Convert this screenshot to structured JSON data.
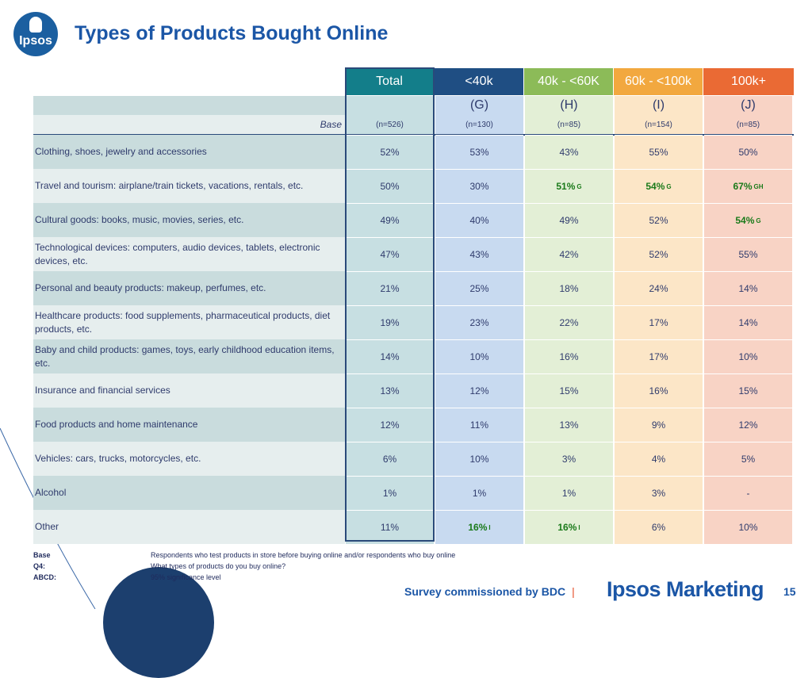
{
  "logo": {
    "text": "Ipsos"
  },
  "title": "Types of Products Bought Online",
  "columns": [
    {
      "label": "Total",
      "letter": "",
      "base": "(n=526)",
      "header_bg": "#137e8a",
      "header_color": "#ffffff",
      "cell_bg": "#c7dfe2"
    },
    {
      "label": "<40k",
      "letter": "(G)",
      "base": "(n=130)",
      "header_bg": "#1f4e83",
      "header_color": "#ffffff",
      "cell_bg": "#c8daf0"
    },
    {
      "label": "40k - <60K",
      "letter": "(H)",
      "base": "(n=85)",
      "header_bg": "#8cbb58",
      "header_color": "#ffffff",
      "cell_bg": "#e3efd6"
    },
    {
      "label": "60k - <100k",
      "letter": "(I)",
      "base": "(n=154)",
      "header_bg": "#f2a83f",
      "header_color": "#ffffff",
      "cell_bg": "#fce6c7"
    },
    {
      "label": "100k+",
      "letter": "(J)",
      "base": "(n=85)",
      "header_bg": "#ea6a34",
      "header_color": "#ffffff",
      "cell_bg": "#f8d3c5"
    }
  ],
  "base_label": "Base",
  "rows": [
    {
      "label": "Clothing, shoes, jewelry and accessories",
      "values": [
        "52%",
        "53%",
        "43%",
        "55%",
        "50%"
      ],
      "sig": [
        "",
        "",
        "",
        "",
        ""
      ]
    },
    {
      "label": "Travel and tourism: airplane/train tickets, vacations, rentals, etc.",
      "values": [
        "50%",
        "30%",
        "51%",
        "54%",
        "67%"
      ],
      "sig": [
        "",
        "",
        "G",
        "G",
        "GH"
      ]
    },
    {
      "label": "Cultural goods: books, music, movies, series, etc.",
      "values": [
        "49%",
        "40%",
        "49%",
        "52%",
        "54%"
      ],
      "sig": [
        "",
        "",
        "",
        "",
        "G"
      ]
    },
    {
      "label": "Technological devices: computers, audio devices, tablets, electronic devices, etc.",
      "values": [
        "47%",
        "43%",
        "42%",
        "52%",
        "55%"
      ],
      "sig": [
        "",
        "",
        "",
        "",
        ""
      ]
    },
    {
      "label": "Personal and beauty products: makeup, perfumes, etc.",
      "values": [
        "21%",
        "25%",
        "18%",
        "24%",
        "14%"
      ],
      "sig": [
        "",
        "",
        "",
        "",
        ""
      ]
    },
    {
      "label": "Healthcare products: food supplements, pharmaceutical products, diet products, etc.",
      "values": [
        "19%",
        "23%",
        "22%",
        "17%",
        "14%"
      ],
      "sig": [
        "",
        "",
        "",
        "",
        ""
      ]
    },
    {
      "label": "Baby and child products: games, toys, early childhood education items, etc.",
      "values": [
        "14%",
        "10%",
        "16%",
        "17%",
        "10%"
      ],
      "sig": [
        "",
        "",
        "",
        "",
        ""
      ]
    },
    {
      "label": "Insurance and financial services",
      "values": [
        "13%",
        "12%",
        "15%",
        "16%",
        "15%"
      ],
      "sig": [
        "",
        "",
        "",
        "",
        ""
      ]
    },
    {
      "label": "Food products and home maintenance",
      "values": [
        "12%",
        "11%",
        "13%",
        "9%",
        "12%"
      ],
      "sig": [
        "",
        "",
        "",
        "",
        ""
      ]
    },
    {
      "label": "Vehicles: cars, trucks, motorcycles, etc.",
      "values": [
        "6%",
        "10%",
        "3%",
        "4%",
        "5%"
      ],
      "sig": [
        "",
        "",
        "",
        "",
        ""
      ]
    },
    {
      "label": "Alcohol",
      "values": [
        "1%",
        "1%",
        "1%",
        "3%",
        "-"
      ],
      "sig": [
        "",
        "",
        "",
        "",
        ""
      ]
    },
    {
      "label": "Other",
      "values": [
        "11%",
        "16%",
        "16%",
        "6%",
        "10%"
      ],
      "sig": [
        "",
        "I",
        "I",
        "",
        ""
      ]
    }
  ],
  "label_bg_even": "#c9dcdd",
  "label_bg_odd": "#e6eeee",
  "footnotes": [
    {
      "key": "Base",
      "text": "Respondents who test products in store before buying online and/or respondents who buy online"
    },
    {
      "key": "Q4:",
      "text": "What types of products do you buy online?"
    },
    {
      "key": "ABCD:",
      "text": "95% significance level"
    }
  ],
  "footer": {
    "survey": "Survey commissioned by BDC",
    "separator": "|",
    "brand": "Ipsos Marketing",
    "page": "15"
  }
}
